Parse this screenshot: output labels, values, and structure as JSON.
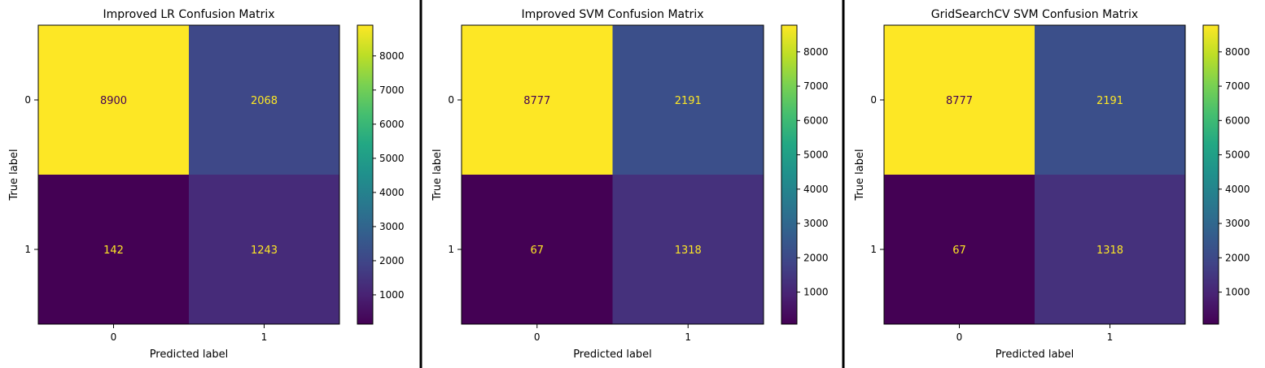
{
  "chart_data": [
    {
      "type": "heatmap",
      "title": "Improved LR Confusion Matrix",
      "xlabel": "Predicted label",
      "ylabel": "True label",
      "x_tick_labels": [
        "0",
        "1"
      ],
      "y_tick_labels": [
        "0",
        "1"
      ],
      "matrix": [
        [
          8900,
          2068
        ],
        [
          142,
          1243
        ]
      ],
      "colormap": "viridis",
      "colorbar_range": [
        142,
        8900
      ],
      "colorbar_ticks": [
        1000,
        2000,
        3000,
        4000,
        5000,
        6000,
        7000,
        8000
      ],
      "colorbar_tick_labels": [
        "1000",
        "2000",
        "3000",
        "4000",
        "5000",
        "6000",
        "7000",
        "8000"
      ]
    },
    {
      "type": "heatmap",
      "title": "Improved SVM Confusion Matrix",
      "xlabel": "Predicted label",
      "ylabel": "True label",
      "x_tick_labels": [
        "0",
        "1"
      ],
      "y_tick_labels": [
        "0",
        "1"
      ],
      "matrix": [
        [
          8777,
          2191
        ],
        [
          67,
          1318
        ]
      ],
      "colormap": "viridis",
      "colorbar_range": [
        67,
        8777
      ],
      "colorbar_ticks": [
        1000,
        2000,
        3000,
        4000,
        5000,
        6000,
        7000,
        8000
      ],
      "colorbar_tick_labels": [
        "1000",
        "2000",
        "3000",
        "4000",
        "5000",
        "6000",
        "7000",
        "8000"
      ]
    },
    {
      "type": "heatmap",
      "title": "GridSearchCV SVM Confusion Matrix",
      "xlabel": "Predicted label",
      "ylabel": "True label",
      "x_tick_labels": [
        "0",
        "1"
      ],
      "y_tick_labels": [
        "0",
        "1"
      ],
      "matrix": [
        [
          8777,
          2191
        ],
        [
          67,
          1318
        ]
      ],
      "colormap": "viridis",
      "colorbar_range": [
        67,
        8777
      ],
      "colorbar_ticks": [
        1000,
        2000,
        3000,
        4000,
        5000,
        6000,
        7000,
        8000
      ],
      "colorbar_tick_labels": [
        "1000",
        "2000",
        "3000",
        "4000",
        "5000",
        "6000",
        "7000",
        "8000"
      ]
    }
  ]
}
